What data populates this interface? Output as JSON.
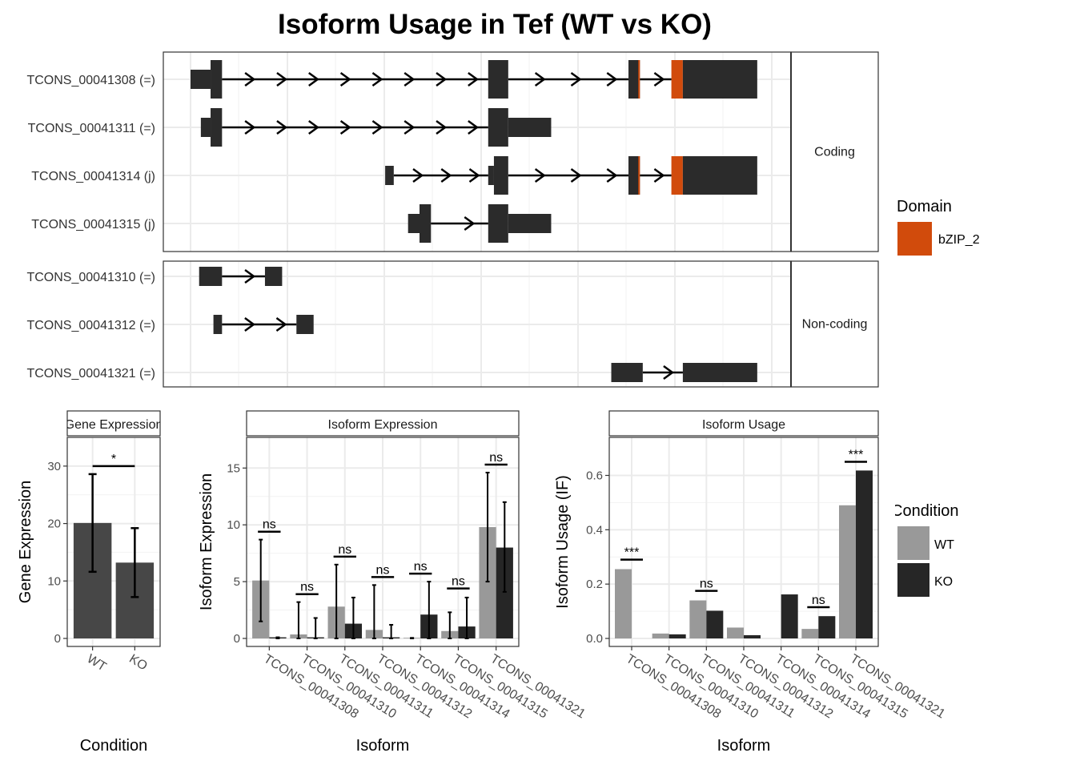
{
  "title": "Isoform Usage in Tef (WT vs KO)",
  "colors": {
    "exon": "#2b2b2b",
    "domain": "#d14b0c",
    "wt": "#999999",
    "ko": "#262626",
    "gene_bar": "#474747",
    "grid": "#ebebeb",
    "panel_border": "#333333"
  },
  "structure": {
    "facets": [
      {
        "label": "Coding",
        "isoforms": [
          {
            "label": "TCONS_00041308 (=)",
            "exons": [
              [
                0.0,
                0.035,
                "utr"
              ],
              [
                0.035,
                0.055,
                "cds"
              ],
              [
                0.52,
                0.555,
                "cds"
              ],
              [
                0.765,
                0.785,
                "cds",
                true
              ],
              [
                0.84,
                0.86,
                "domain"
              ],
              [
                0.86,
                0.99,
                "cds"
              ]
            ]
          },
          {
            "label": "TCONS_00041311 (=)",
            "exons": [
              [
                0.018,
                0.035,
                "utr"
              ],
              [
                0.035,
                0.055,
                "cds"
              ],
              [
                0.52,
                0.555,
                "cds"
              ],
              [
                0.555,
                0.63,
                "utr"
              ]
            ]
          },
          {
            "label": "TCONS_00041314 (j)",
            "exons": [
              [
                0.34,
                0.355,
                "utr"
              ],
              [
                0.52,
                0.53,
                "utr"
              ],
              [
                0.53,
                0.555,
                "cds"
              ],
              [
                0.765,
                0.785,
                "cds",
                true
              ],
              [
                0.84,
                0.86,
                "domain"
              ],
              [
                0.86,
                0.99,
                "cds"
              ]
            ]
          },
          {
            "label": "TCONS_00041315 (j)",
            "exons": [
              [
                0.38,
                0.4,
                "utr"
              ],
              [
                0.4,
                0.42,
                "cds"
              ],
              [
                0.52,
                0.555,
                "cds"
              ],
              [
                0.555,
                0.63,
                "utr"
              ]
            ]
          }
        ]
      },
      {
        "label": "Non-coding",
        "isoforms": [
          {
            "label": "TCONS_00041310 (=)",
            "exons": [
              [
                0.015,
                0.055,
                "utr"
              ],
              [
                0.13,
                0.16,
                "utr"
              ]
            ]
          },
          {
            "label": "TCONS_00041312 (=)",
            "exons": [
              [
                0.04,
                0.055,
                "utr"
              ],
              [
                0.185,
                0.215,
                "utr"
              ]
            ]
          },
          {
            "label": "TCONS_00041321 (=)",
            "exons": [
              [
                0.735,
                0.79,
                "utr"
              ],
              [
                0.86,
                0.99,
                "utr"
              ]
            ]
          }
        ]
      }
    ],
    "legend": {
      "title": "Domain",
      "items": [
        {
          "label": "bZIP_2",
          "color": "#d14b0c"
        }
      ]
    }
  },
  "chart_data": [
    {
      "type": "bar",
      "strip": "Gene Expression",
      "xlabel": "Condition",
      "ylabel": "Gene Expression",
      "ylim": [
        0,
        35
      ],
      "yticks": [
        0,
        10,
        20,
        30
      ],
      "categories": [
        "WT",
        "KO"
      ],
      "values": [
        20.1,
        13.2
      ],
      "error_low": [
        11.6,
        7.2
      ],
      "error_high": [
        28.6,
        19.2
      ],
      "significance": [
        {
          "from": 0,
          "to": 1,
          "y": 30.0,
          "label": "*"
        }
      ]
    },
    {
      "type": "bar",
      "strip": "Isoform Expression",
      "xlabel": "Isoform",
      "ylabel": "Isoform Expression",
      "ylim": [
        0,
        17.7
      ],
      "yticks": [
        0,
        5,
        10,
        15
      ],
      "categories": [
        "TCONS_00041308",
        "TCONS_00041310",
        "TCONS_00041311",
        "TCONS_00041312",
        "TCONS_00041314",
        "TCONS_00041315",
        "TCONS_00041321"
      ],
      "series": [
        {
          "name": "WT",
          "values": [
            5.1,
            0.35,
            2.8,
            0.75,
            0.05,
            0.65,
            9.8
          ],
          "error_low": [
            1.5,
            0.0,
            0.0,
            0.0,
            0.0,
            0.0,
            5.0
          ],
          "error_high": [
            8.7,
            3.2,
            6.5,
            4.7,
            0.05,
            2.3,
            14.6
          ]
        },
        {
          "name": "KO",
          "values": [
            0.1,
            0.1,
            1.3,
            0.1,
            2.1,
            1.05,
            8.0
          ],
          "error_low": [
            0.0,
            0.0,
            0.0,
            0.0,
            0.0,
            0.0,
            4.1
          ],
          "error_high": [
            0.1,
            1.8,
            3.6,
            1.2,
            5.0,
            3.6,
            12.0
          ]
        }
      ],
      "significance": [
        {
          "index": 0,
          "y": 9.4,
          "label": "ns"
        },
        {
          "index": 1,
          "y": 3.9,
          "label": "ns"
        },
        {
          "index": 2,
          "y": 7.2,
          "label": "ns"
        },
        {
          "index": 3,
          "y": 5.4,
          "label": "ns"
        },
        {
          "index": 4,
          "y": 5.7,
          "label": "ns"
        },
        {
          "index": 5,
          "y": 4.4,
          "label": "ns"
        },
        {
          "index": 6,
          "y": 15.3,
          "label": "ns"
        }
      ]
    },
    {
      "type": "bar",
      "strip": "Isoform Usage",
      "xlabel": "Isoform",
      "ylabel": "Isoform Usage (IF)",
      "ylim": [
        0,
        0.74
      ],
      "yticks": [
        0.0,
        0.2,
        0.4,
        0.6
      ],
      "ytick_labels": [
        "0.0",
        "0.2",
        "0.4",
        "0.6"
      ],
      "categories": [
        "TCONS_00041308",
        "TCONS_00041310",
        "TCONS_00041311",
        "TCONS_00041312",
        "TCONS_00041314",
        "TCONS_00041315",
        "TCONS_00041321"
      ],
      "series": [
        {
          "name": "WT",
          "values": [
            0.255,
            0.018,
            0.14,
            0.04,
            0.0,
            0.035,
            0.49
          ]
        },
        {
          "name": "KO",
          "values": [
            0.0,
            0.015,
            0.102,
            0.012,
            0.162,
            0.082,
            0.618
          ]
        }
      ],
      "significance": [
        {
          "index": 0,
          "y": 0.29,
          "label": "***"
        },
        {
          "index": 2,
          "y": 0.175,
          "label": "ns"
        },
        {
          "index": 5,
          "y": 0.115,
          "label": "ns"
        },
        {
          "index": 6,
          "y": 0.65,
          "label": "***"
        }
      ],
      "legend": {
        "title": "Condition",
        "items": [
          {
            "label": "WT",
            "color": "#999999"
          },
          {
            "label": "KO",
            "color": "#262626"
          }
        ]
      }
    }
  ]
}
